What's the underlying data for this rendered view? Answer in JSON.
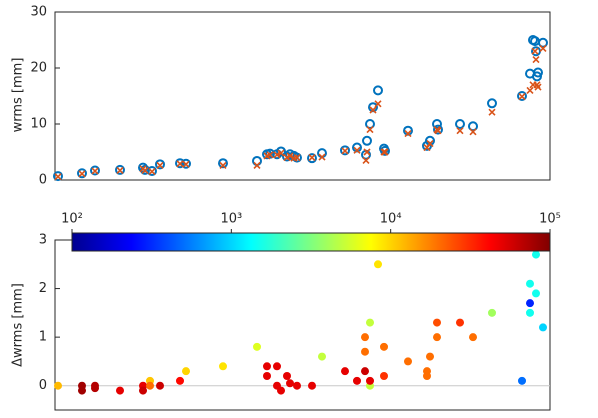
{
  "chart_data": [
    {
      "type": "scatter",
      "ylabel": "wrms [mm]",
      "xlim": [
        0,
        99
      ],
      "ylim": [
        0,
        30
      ],
      "yticks": [
        0,
        10,
        20,
        30
      ],
      "x": [
        0.6,
        5.4,
        8,
        13,
        17.6,
        18,
        19.4,
        21,
        25,
        26.2,
        33.6,
        40.4,
        42.4,
        43,
        44.4,
        45.2,
        46.4,
        47,
        47.8,
        48.4,
        51.4,
        53.4,
        58,
        60.4,
        62.2,
        62.4,
        63,
        63.6,
        64.6,
        65.8,
        66,
        70.6,
        74.4,
        75,
        76.4,
        76.6,
        81,
        83.6,
        87.4,
        93.4,
        95,
        95.6,
        96,
        96.2,
        96.4,
        96.6,
        97.6
      ],
      "series": [
        {
          "marker": "circle",
          "color": "#0072bd",
          "values": [
            0.7,
            1.2,
            1.7,
            1.8,
            2.2,
            1.8,
            1.6,
            2.8,
            3.0,
            2.9,
            3.0,
            3.4,
            4.6,
            4.7,
            4.6,
            5.1,
            4.2,
            4.6,
            4.3,
            4.0,
            3.9,
            4.8,
            5.3,
            5.8,
            4.5,
            7,
            10,
            13,
            16,
            5.6,
            5.2,
            8.8,
            6.1,
            7,
            10,
            9,
            10,
            9.6,
            13.7,
            15,
            19,
            25,
            24.8,
            23,
            18.5,
            19.2,
            24.5
          ]
        },
        {
          "marker": "cross",
          "color": "#d95319",
          "values": [
            0.6,
            1.1,
            1.6,
            1.7,
            2.0,
            1.7,
            1.5,
            2.6,
            2.9,
            2.8,
            2.6,
            2.6,
            4.3,
            4.5,
            4.5,
            4.8,
            4.0,
            4.3,
            3.9,
            4.0,
            4.0,
            4.1,
            5.2,
            5.3,
            3.5,
            5,
            9,
            12.5,
            13.6,
            5.0,
            5.0,
            8.3,
            5.8,
            6.5,
            9,
            8.8,
            8.8,
            8.6,
            12.1,
            14.9,
            16,
            17,
            23,
            21.5,
            17,
            16.6,
            23.5
          ]
        }
      ]
    },
    {
      "type": "colorscatter",
      "ylabel": "Δwrms [mm]",
      "xlim": [
        0,
        99
      ],
      "ylim": [
        -0.5,
        3
      ],
      "yticks": [
        0,
        1,
        2,
        3
      ],
      "colorbar": {
        "scale": "log",
        "colormap": "jet",
        "lim": [
          100,
          100000
        ],
        "ticks": [
          {
            "value": 100,
            "label": "10²"
          },
          {
            "value": 1000,
            "label": "10³"
          },
          {
            "value": 10000,
            "label": "10⁴"
          },
          {
            "value": 100000,
            "label": "10⁵"
          }
        ]
      },
      "x": [
        0.6,
        5.4,
        5.4,
        8,
        8,
        13,
        17.6,
        17.6,
        19,
        19,
        21,
        25,
        26.2,
        33.6,
        40.4,
        42.4,
        42.4,
        44.4,
        44.4,
        45.2,
        46.4,
        47,
        48.4,
        51.4,
        53.4,
        58,
        60.4,
        62,
        62,
        62,
        63,
        63,
        63,
        64.6,
        65.8,
        65.8,
        70.6,
        74.4,
        74.4,
        75,
        76.4,
        76.4,
        81,
        83.6,
        87.4,
        93.4,
        95,
        95,
        95,
        96.2,
        96.2,
        97.6
      ],
      "values": [
        0,
        0,
        -0.1,
        0,
        -0.05,
        -0.1,
        0,
        -0.1,
        0.1,
        0,
        0,
        0.1,
        0.3,
        0.4,
        0.8,
        0.4,
        0.2,
        0,
        0.4,
        -0.1,
        0.2,
        0.05,
        0,
        0,
        0.6,
        0.3,
        0.1,
        0.3,
        1.0,
        0.7,
        1.3,
        0,
        0.1,
        2.5,
        0.8,
        0.2,
        0.5,
        0.3,
        0.2,
        0.6,
        1.3,
        1.0,
        1.3,
        1.0,
        1.5,
        0.1,
        1.7,
        2.1,
        1.5,
        1.9,
        2.7,
        1.2
      ],
      "c": [
        12000,
        80000,
        80000,
        70000,
        70000,
        50000,
        50000,
        60000,
        11000,
        20000,
        60000,
        40000,
        10000,
        9000,
        6000,
        50000,
        50000,
        50000,
        50000,
        50000,
        50000,
        50000,
        50000,
        50000,
        5000,
        50000,
        50000,
        60000,
        20000,
        20000,
        5000,
        5000,
        50000,
        9000,
        20000,
        30000,
        20000,
        20000,
        20000,
        20000,
        25000,
        20000,
        30000,
        20000,
        4000,
        500,
        300,
        1500,
        1500,
        1500,
        1500,
        1000
      ]
    }
  ]
}
